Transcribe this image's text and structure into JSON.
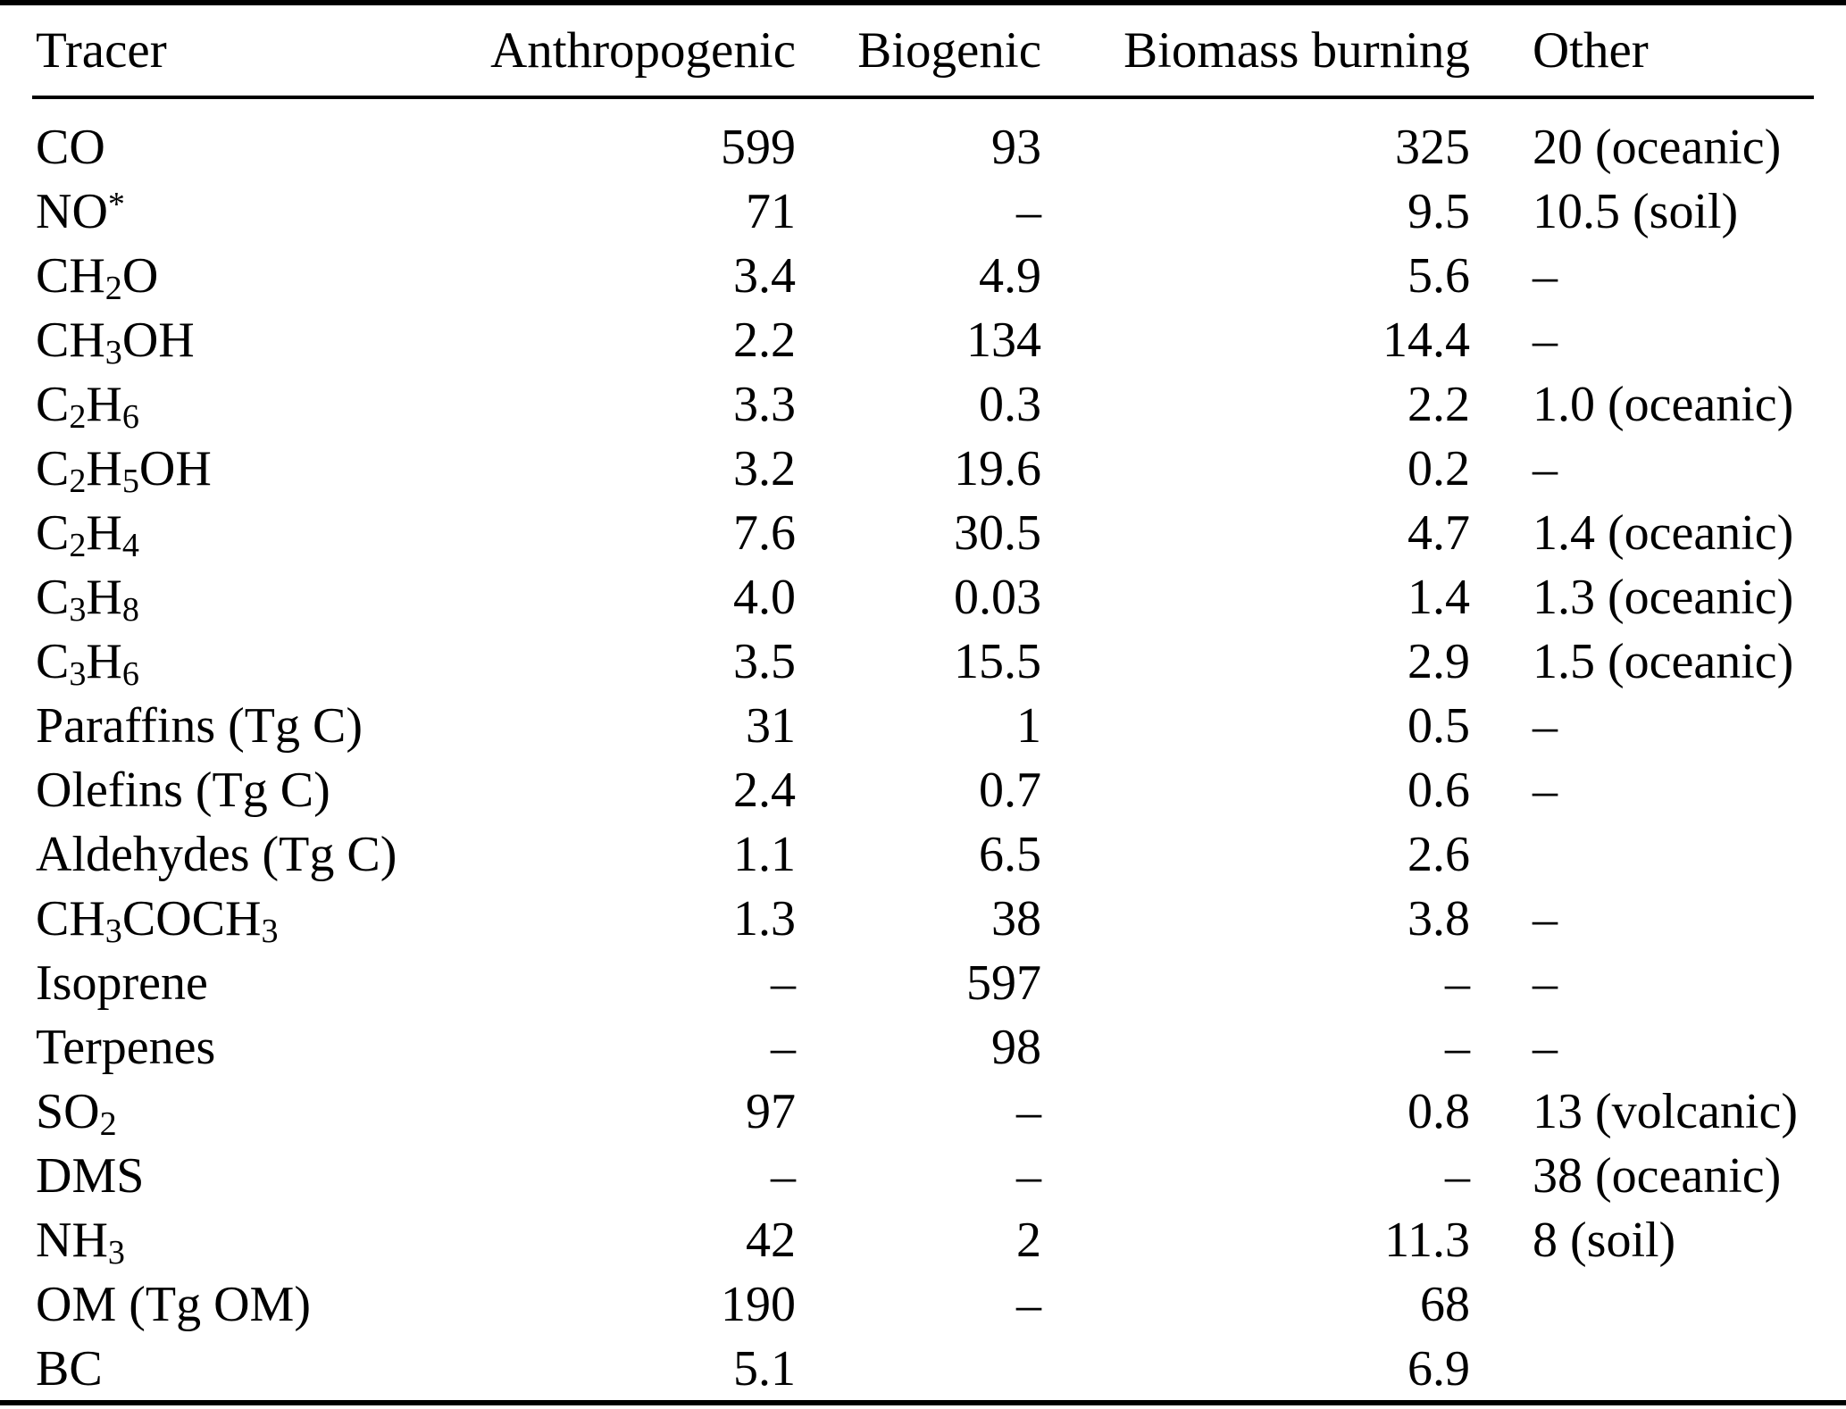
{
  "table": {
    "columns": [
      "Tracer",
      "Anthropogenic",
      "Biogenic",
      "Biomass burning",
      "Other"
    ],
    "rows": [
      [
        "CO",
        "599",
        "93",
        "325",
        "20 (oceanic)"
      ],
      [
        "NO^*",
        "71",
        "–",
        "9.5",
        "10.5 (soil)"
      ],
      [
        "CH_2O",
        "3.4",
        "4.9",
        "5.6",
        "–"
      ],
      [
        "CH_3OH",
        "2.2",
        "134",
        "14.4",
        "–"
      ],
      [
        "C_2H_6",
        "3.3",
        "0.3",
        "2.2",
        "1.0 (oceanic)"
      ],
      [
        "C_2H_5OH",
        "3.2",
        "19.6",
        "0.2",
        "–"
      ],
      [
        "C_2H_4",
        "7.6",
        "30.5",
        "4.7",
        "1.4 (oceanic)"
      ],
      [
        "C_3H_8",
        "4.0",
        "0.03",
        "1.4",
        "1.3 (oceanic)"
      ],
      [
        "C_3H_6",
        "3.5",
        "15.5",
        "2.9",
        "1.5 (oceanic)"
      ],
      [
        "Paraffins (Tg C)",
        "31",
        "1",
        "0.5",
        "–"
      ],
      [
        "Olefins (Tg C)",
        "2.4",
        "0.7",
        "0.6",
        "–"
      ],
      [
        "Aldehydes (Tg C)",
        "1.1",
        "6.5",
        "2.6",
        ""
      ],
      [
        "CH_3COCH_3",
        "1.3",
        "38",
        "3.8",
        "–"
      ],
      [
        "Isoprene",
        "–",
        "597",
        "–",
        "–"
      ],
      [
        "Terpenes",
        "–",
        "98",
        "–",
        "–"
      ],
      [
        "SO_2",
        "97",
        "–",
        "0.8",
        "13 (volcanic)"
      ],
      [
        "DMS",
        "–",
        "–",
        "–",
        "38 (oceanic)"
      ],
      [
        "NH_3",
        "42",
        "2",
        "11.3",
        "8 (soil)"
      ],
      [
        "OM (Tg OM)",
        "190",
        "–",
        "68",
        ""
      ],
      [
        "BC",
        "5.1",
        "",
        "6.9",
        ""
      ]
    ]
  }
}
